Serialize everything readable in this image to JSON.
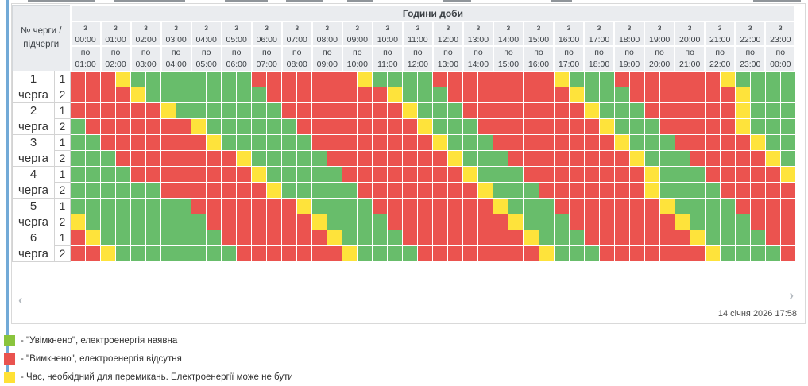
{
  "table": {
    "corner_label": "№ черги /\nпідчерги",
    "hours_title": "Години доби",
    "from_prefix": "з",
    "to_prefix": "по",
    "columns": [
      {
        "from": "00:00",
        "to": "01:00"
      },
      {
        "from": "01:00",
        "to": "02:00"
      },
      {
        "from": "02:00",
        "to": "03:00"
      },
      {
        "from": "03:00",
        "to": "04:00"
      },
      {
        "from": "04:00",
        "to": "05:00"
      },
      {
        "from": "05:00",
        "to": "06:00"
      },
      {
        "from": "06:00",
        "to": "07:00"
      },
      {
        "from": "07:00",
        "to": "08:00"
      },
      {
        "from": "08:00",
        "to": "09:00"
      },
      {
        "from": "09:00",
        "to": "10:00"
      },
      {
        "from": "10:00",
        "to": "11:00"
      },
      {
        "from": "11:00",
        "to": "12:00"
      },
      {
        "from": "12:00",
        "to": "13:00"
      },
      {
        "from": "13:00",
        "to": "14:00"
      },
      {
        "from": "14:00",
        "to": "15:00"
      },
      {
        "from": "15:00",
        "to": "16:00"
      },
      {
        "from": "16:00",
        "to": "17:00"
      },
      {
        "from": "17:00",
        "to": "18:00"
      },
      {
        "from": "18:00",
        "to": "19:00"
      },
      {
        "from": "19:00",
        "to": "20:00"
      },
      {
        "from": "20:00",
        "to": "21:00"
      },
      {
        "from": "21:00",
        "to": "22:00"
      },
      {
        "from": "22:00",
        "to": "23:00"
      },
      {
        "from": "23:00",
        "to": "00:00"
      }
    ]
  },
  "queues": [
    {
      "label": "1\nчерга",
      "subqueues": [
        {
          "label": "1",
          "cells": "RRRYGGGGGGGGRRRRRRRYGGGGRRRRRRRRYGGGRRRRRRRYGGGG"
        },
        {
          "label": "2",
          "cells": "RRRRYGGGGGGGGRRRRRRRRYGGGRRRRRRRRYGGGRRRRRRRYGGG"
        }
      ]
    },
    {
      "label": "2\nчерга",
      "subqueues": [
        {
          "label": "1",
          "cells": "RRRRRRYGGGGGGGRRRRRRRRYGGGRRRRRRRRYGGGRRRRRRYGGG"
        },
        {
          "label": "2",
          "cells": "GRRRRRRRYGGGGGGRRRRRRRRYGGGRRRRRRRRYGGGRRRRRYGGG"
        }
      ]
    },
    {
      "label": "3\nчерга",
      "subqueues": [
        {
          "label": "1",
          "cells": "GGRRRRRRRYGGGGGGRRRRRRRRYGGGRRRRRRRRYGGGRRRRRYGG"
        },
        {
          "label": "2",
          "cells": "GGGRRRRRRRRYGGGGGRRRRRRRRYGGGRRRRRRRRYGGGRRRRRYG"
        }
      ]
    },
    {
      "label": "4\nчерга",
      "subqueues": [
        {
          "label": "1",
          "cells": "GGGGRRRRRRRRYGGGGGRRRRRRRRYGGGRRRRRRRRYGGGRRRRRY"
        },
        {
          "label": "2",
          "cells": "GGGGGGRRRRRRRYGGGGGRRRRRRRRYGGGRRRRRRRYGGGGRRRRR"
        }
      ]
    },
    {
      "label": "5\nчерга",
      "subqueues": [
        {
          "label": "1",
          "cells": "GGGGGGGGRRRRRRRYGGGGRRRRRRRRYGGGRRRRRRRYGGGGRRRR"
        },
        {
          "label": "2",
          "cells": "YGGGGGGGGRRRRRRRYGGGGRRRRRRRRYGGGRRRRRRRYGGGGRRR"
        }
      ]
    },
    {
      "label": "6\nчерга",
      "subqueues": [
        {
          "label": "1",
          "cells": "RYGGGGGGGGRRRRRRRYGGGGRRRRRRRRYGGGRRRRRRRYGGGGRR"
        },
        {
          "label": "2",
          "cells": "RRYGGGGGGGGRRRRRRRYGGGGRRRRRRRRYGGGRRRRRRRYGGGGR"
        }
      ]
    }
  ],
  "cell_states": {
    "G": "on",
    "R": "off",
    "Y": "switching"
  },
  "colors": {
    "on": "#68bd6b",
    "off": "#eb534f",
    "switching": "#fee33b",
    "legend_on": "#8ac43d",
    "legend_off": "#e9534f",
    "legend_switching": "#ffe135"
  },
  "legend": [
    {
      "state": "on",
      "text": "- \"Увімкнено\", електроенергія наявна"
    },
    {
      "state": "off",
      "text": "- \"Вимкнено\", електроенергія відсутня"
    },
    {
      "state": "switching",
      "text": "- Час, необхідний для перемикань. Електроенергії може не бути"
    }
  ],
  "footer": {
    "prev_arrow": "‹",
    "next_arrow": "›",
    "timestamp": "14 січня 2026 17:58"
  }
}
